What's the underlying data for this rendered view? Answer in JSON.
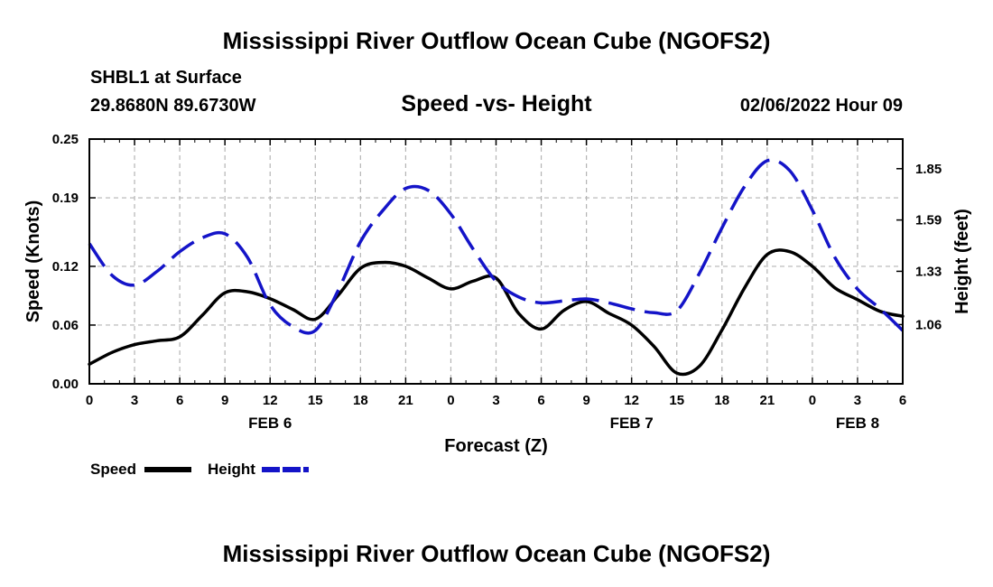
{
  "header": {
    "main_title": "Mississippi River Outflow Ocean Cube (NGOFS2)",
    "station": "SHBL1 at Surface",
    "coords": "29.8680N  89.6730W",
    "date_hour": "02/06/2022 Hour 09",
    "footer_title": "Mississippi River Outflow Ocean Cube (NGOFS2)"
  },
  "colors": {
    "speed": "#000000",
    "height": "#1414c8",
    "grid": "#b4b4b4"
  },
  "chart_data": {
    "type": "line",
    "title": "Speed -vs- Height",
    "xlabel": "Forecast (Z)",
    "ylabel": "Speed (Knots)",
    "ylabel_right": "Height (feet)",
    "x_range": [
      0,
      54
    ],
    "x_tick_positions": [
      0,
      3,
      6,
      9,
      12,
      15,
      18,
      21,
      24,
      27,
      30,
      33,
      36,
      39,
      42,
      45,
      48,
      51,
      54
    ],
    "x_tick_labels": [
      "0",
      "3",
      "6",
      "9",
      "12",
      "15",
      "18",
      "21",
      "0",
      "3",
      "6",
      "9",
      "12",
      "15",
      "18",
      "21",
      "0",
      "3",
      "6"
    ],
    "date_labels": [
      {
        "label": "FEB 6",
        "x": 12
      },
      {
        "label": "FEB 7",
        "x": 36
      },
      {
        "label": "FEB 8",
        "x": 51
      }
    ],
    "y_left": {
      "range": [
        0,
        0.25
      ],
      "ticks": [
        0.0,
        0.06,
        0.12,
        0.19,
        0.25
      ],
      "tick_labels": [
        "0.00",
        "0.06",
        "0.12",
        "0.19",
        "0.25"
      ]
    },
    "y_right": {
      "range": [
        0.76,
        2.0
      ],
      "ticks": [
        1.06,
        1.33,
        1.59,
        1.85
      ],
      "tick_labels": [
        "1.06",
        "1.33",
        "1.59",
        "1.85"
      ]
    },
    "legend": {
      "position": "bottom-left",
      "speed_label": "Speed",
      "height_label": "Height"
    },
    "series": [
      {
        "name": "Speed",
        "axis": "left",
        "style": "solid",
        "x": [
          0,
          1.5,
          3,
          4.5,
          6,
          7.5,
          9,
          10.5,
          12,
          13.5,
          15,
          16.5,
          18,
          19.5,
          21,
          22.5,
          24,
          25.5,
          27,
          28.5,
          30,
          31.5,
          33,
          34.5,
          36,
          37.5,
          39,
          40.5,
          42,
          43.5,
          45,
          46.5,
          48,
          49.5,
          51,
          52.5,
          54
        ],
        "values": [
          0.02,
          0.032,
          0.04,
          0.044,
          0.048,
          0.07,
          0.093,
          0.094,
          0.087,
          0.076,
          0.066,
          0.09,
          0.118,
          0.124,
          0.12,
          0.108,
          0.097,
          0.105,
          0.108,
          0.072,
          0.056,
          0.075,
          0.084,
          0.072,
          0.06,
          0.038,
          0.011,
          0.018,
          0.055,
          0.098,
          0.132,
          0.135,
          0.12,
          0.098,
          0.086,
          0.074,
          0.069
        ]
      },
      {
        "name": "Height",
        "axis": "right",
        "style": "dashed",
        "x": [
          0,
          1.5,
          3,
          4.5,
          6,
          7.5,
          9,
          10.5,
          12,
          13.5,
          15,
          16.5,
          18,
          19.5,
          21,
          22.5,
          24,
          25.5,
          27,
          28.5,
          30,
          31.5,
          33,
          34.5,
          36,
          37.5,
          39,
          40.5,
          42,
          43.5,
          45,
          46.5,
          48,
          49.5,
          51,
          52.5,
          54
        ],
        "values": [
          1.47,
          1.31,
          1.26,
          1.33,
          1.43,
          1.5,
          1.52,
          1.4,
          1.16,
          1.05,
          1.03,
          1.23,
          1.48,
          1.64,
          1.75,
          1.74,
          1.62,
          1.44,
          1.28,
          1.2,
          1.17,
          1.18,
          1.19,
          1.17,
          1.14,
          1.12,
          1.13,
          1.32,
          1.55,
          1.76,
          1.89,
          1.84,
          1.64,
          1.4,
          1.24,
          1.14,
          1.03
        ]
      }
    ]
  }
}
